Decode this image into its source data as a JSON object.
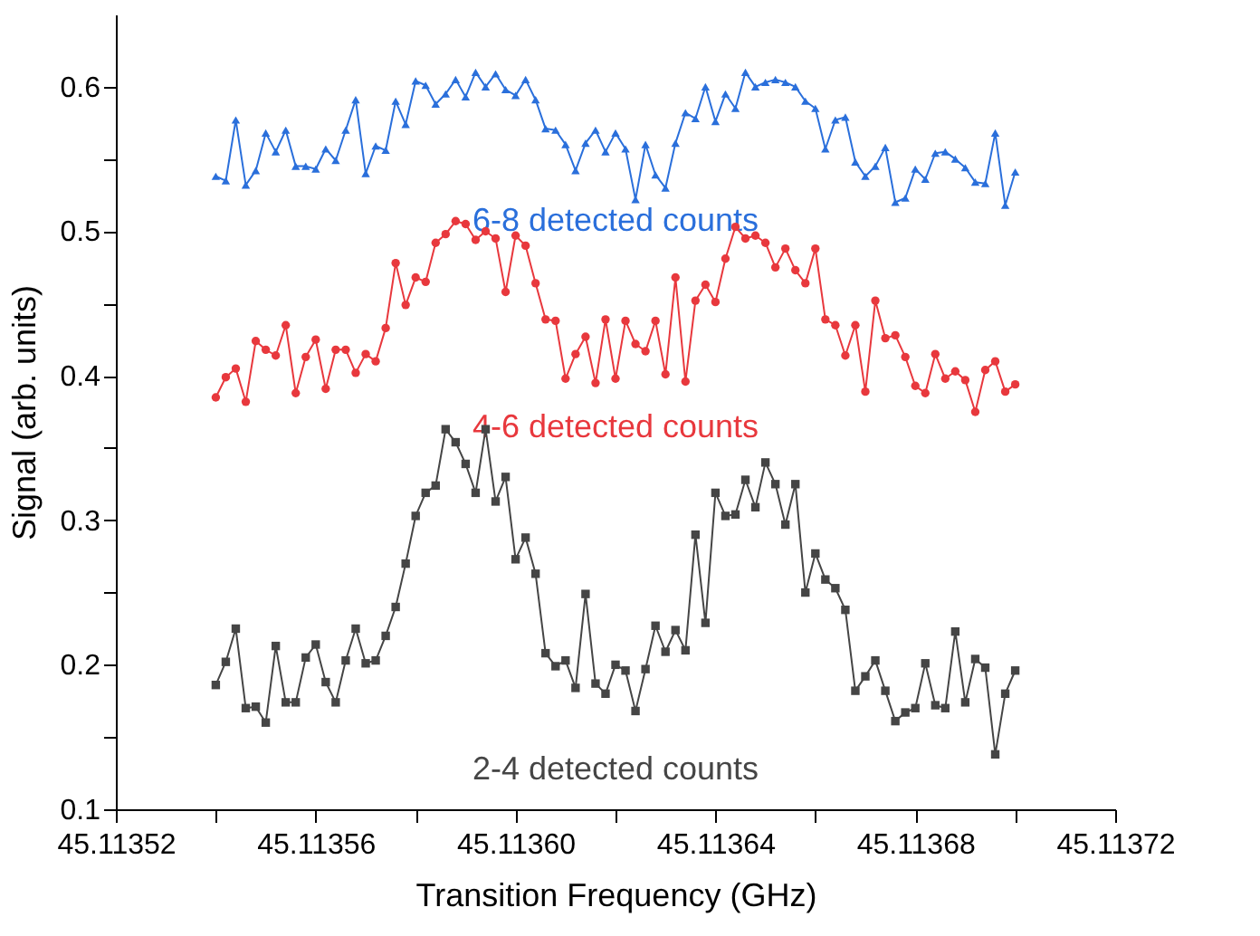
{
  "chart_data": {
    "type": "line",
    "xlabel": "Transition Frequency (GHz)",
    "ylabel": "Signal (arb. units)",
    "x": [
      45.11354,
      45.113542,
      45.113544,
      45.113546,
      45.113548,
      45.11355,
      45.113552,
      45.113554,
      45.113556,
      45.113558,
      45.11356,
      45.113562,
      45.113564,
      45.113566,
      45.113568,
      45.11357,
      45.113572,
      45.113574,
      45.113576,
      45.113578,
      45.11358,
      45.113582,
      45.113584,
      45.113586,
      45.113588,
      45.11359,
      45.113592,
      45.113594,
      45.113596,
      45.113598,
      45.1136,
      45.113602,
      45.113604,
      45.113606,
      45.113608,
      45.11361,
      45.113612,
      45.113614,
      45.113616,
      45.113618,
      45.11362,
      45.113622,
      45.113624,
      45.113626,
      45.113628,
      45.11363,
      45.113632,
      45.113634,
      45.113636,
      45.113638,
      45.11364,
      45.113642,
      45.113644,
      45.113646,
      45.113648,
      45.11365,
      45.113652,
      45.113654,
      45.113656,
      45.113658,
      45.11366,
      45.113662,
      45.113664,
      45.113666,
      45.113668,
      45.11367,
      45.113672,
      45.113674,
      45.113676,
      45.113678,
      45.11368,
      45.113682,
      45.113684,
      45.113686,
      45.113688,
      45.11369,
      45.113692,
      45.113694,
      45.113696,
      45.113698,
      45.1137
    ],
    "series": [
      {
        "name": "6-8 detected counts",
        "color": "#2a6fdb",
        "marker": "triangle",
        "values": [
          0.538,
          0.535,
          0.577,
          0.532,
          0.542,
          0.568,
          0.555,
          0.57,
          0.545,
          0.545,
          0.543,
          0.557,
          0.549,
          0.57,
          0.591,
          0.54,
          0.559,
          0.556,
          0.59,
          0.574,
          0.604,
          0.601,
          0.588,
          0.595,
          0.605,
          0.593,
          0.61,
          0.6,
          0.609,
          0.598,
          0.594,
          0.605,
          0.591,
          0.571,
          0.57,
          0.56,
          0.542,
          0.561,
          0.57,
          0.555,
          0.568,
          0.557,
          0.522,
          0.56,
          0.539,
          0.53,
          0.561,
          0.582,
          0.578,
          0.6,
          0.576,
          0.595,
          0.585,
          0.61,
          0.6,
          0.603,
          0.605,
          0.603,
          0.6,
          0.59,
          0.585,
          0.557,
          0.577,
          0.579,
          0.548,
          0.538,
          0.545,
          0.558,
          0.52,
          0.523,
          0.543,
          0.536,
          0.554,
          0.555,
          0.55,
          0.544,
          0.534,
          0.533,
          0.568,
          0.518,
          0.541
        ]
      },
      {
        "name": "4-6 detected counts",
        "color": "#e8383d",
        "marker": "circle",
        "values": [
          0.385,
          0.399,
          0.405,
          0.382,
          0.424,
          0.418,
          0.414,
          0.435,
          0.388,
          0.413,
          0.425,
          0.391,
          0.418,
          0.418,
          0.402,
          0.415,
          0.41,
          0.433,
          0.478,
          0.449,
          0.468,
          0.465,
          0.492,
          0.498,
          0.507,
          0.505,
          0.494,
          0.5,
          0.495,
          0.458,
          0.497,
          0.49,
          0.464,
          0.439,
          0.438,
          0.398,
          0.415,
          0.427,
          0.395,
          0.439,
          0.398,
          0.438,
          0.422,
          0.417,
          0.438,
          0.401,
          0.468,
          0.396,
          0.452,
          0.463,
          0.451,
          0.481,
          0.503,
          0.495,
          0.497,
          0.492,
          0.475,
          0.488,
          0.473,
          0.464,
          0.488,
          0.439,
          0.435,
          0.414,
          0.435,
          0.389,
          0.452,
          0.426,
          0.428,
          0.413,
          0.393,
          0.388,
          0.415,
          0.398,
          0.403,
          0.397,
          0.375,
          0.404,
          0.41,
          0.389,
          0.394
        ]
      },
      {
        "name": "2-4 detected counts",
        "color": "#454545",
        "marker": "square",
        "values": [
          0.186,
          0.202,
          0.225,
          0.17,
          0.171,
          0.16,
          0.213,
          0.174,
          0.174,
          0.205,
          0.214,
          0.188,
          0.174,
          0.203,
          0.225,
          0.201,
          0.203,
          0.22,
          0.24,
          0.27,
          0.303,
          0.319,
          0.324,
          0.363,
          0.354,
          0.339,
          0.319,
          0.363,
          0.313,
          0.33,
          0.273,
          0.288,
          0.263,
          0.208,
          0.199,
          0.203,
          0.184,
          0.249,
          0.187,
          0.18,
          0.2,
          0.196,
          0.168,
          0.197,
          0.227,
          0.209,
          0.224,
          0.21,
          0.29,
          0.229,
          0.319,
          0.303,
          0.304,
          0.328,
          0.309,
          0.34,
          0.325,
          0.297,
          0.325,
          0.25,
          0.277,
          0.259,
          0.253,
          0.238,
          0.182,
          0.192,
          0.203,
          0.182,
          0.161,
          0.167,
          0.17,
          0.201,
          0.172,
          0.17,
          0.223,
          0.174,
          0.204,
          0.198,
          0.138,
          0.18,
          0.196
        ]
      }
    ],
    "xlim": [
      45.11352,
      45.11372
    ],
    "xticks": [
      45.11352,
      {
        "value": 45.11354,
        "label": null
      },
      45.11356,
      {
        "value": 45.11358,
        "label": null
      },
      {
        "value": 45.1136,
        "label": "45.11360"
      },
      {
        "value": 45.11362,
        "label": null
      },
      45.11364,
      {
        "value": 45.11366,
        "label": null
      },
      45.11368,
      {
        "value": 45.1137,
        "label": null
      },
      45.11372
    ],
    "ylim": [
      0.1,
      0.65
    ],
    "yticks": [
      0.1,
      {
        "value": 0.15,
        "label": null
      },
      0.2,
      {
        "value": 0.25,
        "label": null
      },
      0.3,
      {
        "value": 0.35,
        "label": null
      },
      0.4,
      {
        "value": 0.45,
        "label": null
      },
      0.5,
      {
        "value": 0.55,
        "label": null
      },
      0.6
    ],
    "grid": false,
    "legend": false,
    "line_style": "solid"
  }
}
